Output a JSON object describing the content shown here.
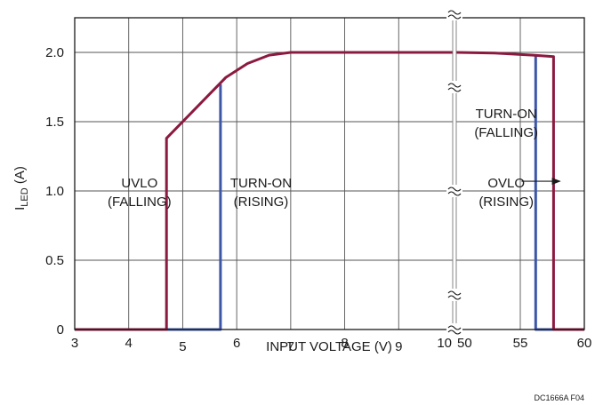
{
  "chart_data": {
    "type": "line",
    "xlabel": "INPUT VOLTAGE (V)",
    "ylabel_main": "I",
    "ylabel_sub": "LED",
    "ylabel_unit": " (A)",
    "ylim": [
      0,
      2.25
    ],
    "grid": true,
    "x_axis": {
      "broken": true,
      "segments": [
        {
          "range": [
            3,
            10
          ],
          "ticks": [
            3,
            4,
            5,
            6,
            7,
            8,
            9,
            10
          ]
        },
        {
          "range": [
            50,
            60
          ],
          "ticks": [
            50,
            55,
            60
          ]
        }
      ]
    },
    "y_ticks": [
      {
        "v": 0,
        "label": "0"
      },
      {
        "v": 0.5,
        "label": "0.5"
      },
      {
        "v": 1.0,
        "label": "1.0"
      },
      {
        "v": 1.5,
        "label": "1.5"
      },
      {
        "v": 2.0,
        "label": "2.0"
      }
    ],
    "series": [
      {
        "color": "#3c56a8",
        "segment1": [
          [
            3,
            0
          ],
          [
            5.7,
            0
          ],
          [
            5.7,
            1.77
          ]
        ],
        "segment2": [
          [
            56.2,
            1.98
          ],
          [
            56.2,
            0
          ],
          [
            60,
            0
          ]
        ]
      },
      {
        "color": "#8b1a3f",
        "segment1": [
          [
            3,
            0
          ],
          [
            4.7,
            0
          ],
          [
            4.7,
            1.38
          ],
          [
            5.8,
            1.82
          ],
          [
            6.2,
            1.92
          ],
          [
            6.6,
            1.98
          ],
          [
            7,
            2.0
          ],
          [
            10,
            2.0
          ]
        ],
        "segment2": [
          [
            50,
            2.0
          ],
          [
            53,
            1.995
          ],
          [
            56,
            1.98
          ],
          [
            57.6,
            1.97
          ],
          [
            57.6,
            0
          ],
          [
            60,
            0
          ]
        ]
      }
    ],
    "annotations": [
      {
        "lines": [
          "UVLO",
          "(FALLING)"
        ],
        "x": 4.2,
        "segment": 1,
        "y": 1.0
      },
      {
        "lines": [
          "TURN-ON",
          "(RISING)"
        ],
        "x": 6.45,
        "segment": 1,
        "y": 1.0
      },
      {
        "lines": [
          "TURN-ON",
          "(FALLING)"
        ],
        "x": 53.9,
        "segment": 2,
        "y": 1.5
      },
      {
        "lines": [
          "OVLO",
          "(RISING)"
        ],
        "x": 53.9,
        "segment": 2,
        "y": 1.0
      }
    ],
    "arrow": {
      "from_x": 55.1,
      "to_x": 58.1,
      "y": 1.07
    }
  },
  "footer": "DC1666A F04"
}
